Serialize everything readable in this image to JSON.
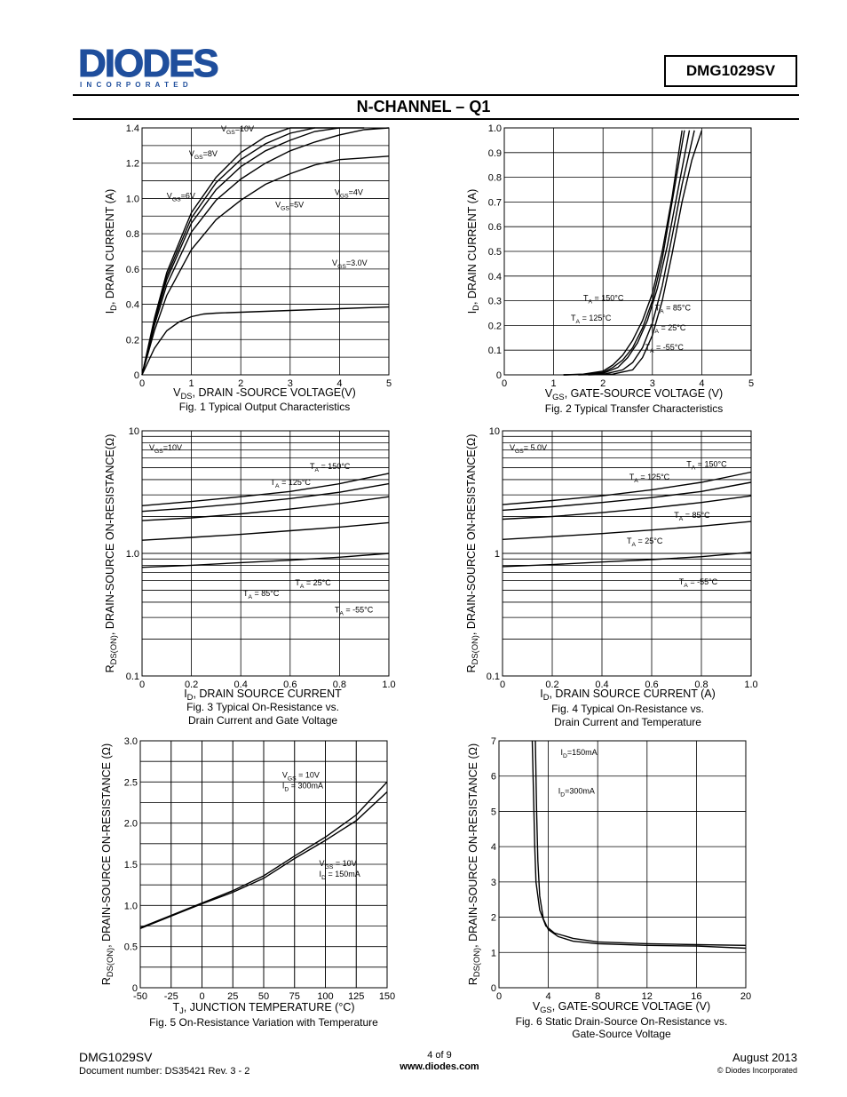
{
  "header": {
    "logo_text": "DIODES",
    "logo_sub": "I N C O R P O R A T E D",
    "part_number": "DMG1029SV",
    "section_title": "N-CHANNEL – Q1"
  },
  "footer": {
    "part": "DMG1029SV",
    "doc": "Document number: DS35421  Rev. 3 - 2",
    "page": "4 of 9",
    "url": "www.diodes.com",
    "date": "August 2013",
    "copyright": "© Diodes Incorporated"
  },
  "chart_data": [
    {
      "type": "line",
      "caption": "Fig. 1 Typical Output Characteristics",
      "xlabel": "V_DS, DRAIN -SOURCE VOLTAGE(V)",
      "ylabel": "I_D, DRAIN CURRENT (A)",
      "xlim": [
        0,
        5
      ],
      "ylim": [
        0,
        1.4
      ],
      "xticks": [
        "0",
        "1",
        "2",
        "3",
        "4",
        "5"
      ],
      "yticks": [
        "0",
        "0.2",
        "0.4",
        "0.6",
        "0.8",
        "1.0",
        "1.2",
        "1.4"
      ],
      "series": [
        {
          "name": "V_GS=10V",
          "x": [
            0,
            0.25,
            0.5,
            1,
            1.5,
            2,
            2.5,
            3,
            3.5
          ],
          "y": [
            0,
            0.32,
            0.58,
            0.92,
            1.12,
            1.26,
            1.35,
            1.41,
            1.44
          ]
        },
        {
          "name": "V_GS=8V",
          "x": [
            0,
            0.25,
            0.5,
            1,
            1.5,
            2,
            2.5,
            3,
            3.5,
            4
          ],
          "y": [
            0,
            0.31,
            0.56,
            0.89,
            1.09,
            1.22,
            1.31,
            1.37,
            1.41,
            1.43
          ]
        },
        {
          "name": "V_GS=6V",
          "x": [
            0,
            0.25,
            0.5,
            1,
            1.5,
            2,
            2.5,
            3,
            3.5,
            4,
            4.5
          ],
          "y": [
            0,
            0.3,
            0.54,
            0.86,
            1.05,
            1.18,
            1.27,
            1.33,
            1.38,
            1.41,
            1.43
          ]
        },
        {
          "name": "V_GS=5V",
          "x": [
            0,
            0.25,
            0.5,
            1,
            1.5,
            2,
            2.5,
            3,
            3.5,
            4,
            4.5,
            5
          ],
          "y": [
            0,
            0.28,
            0.51,
            0.81,
            0.99,
            1.11,
            1.2,
            1.27,
            1.32,
            1.36,
            1.39,
            1.41
          ]
        },
        {
          "name": "V_GS=4V",
          "x": [
            0,
            0.25,
            0.5,
            1,
            1.5,
            2,
            2.5,
            3,
            3.5,
            4,
            4.5,
            5
          ],
          "y": [
            0,
            0.25,
            0.45,
            0.71,
            0.88,
            0.99,
            1.08,
            1.14,
            1.19,
            1.22,
            1.23,
            1.24
          ]
        },
        {
          "name": "V_GS=3.0V",
          "x": [
            0,
            0.25,
            0.5,
            0.75,
            1,
            1.25,
            1.5,
            2,
            3,
            4,
            5
          ],
          "y": [
            0,
            0.15,
            0.25,
            0.3,
            0.33,
            0.345,
            0.35,
            0.355,
            0.365,
            0.375,
            0.385
          ]
        }
      ],
      "annotations": [
        {
          "text": "V_GS=10V",
          "x": 1.6,
          "y": 1.38
        },
        {
          "text": "V_GS=8V",
          "x": 0.95,
          "y": 1.24
        },
        {
          "text": "V_GS=6V",
          "x": 0.5,
          "y": 1.0
        },
        {
          "text": "V_GS=5V",
          "x": 2.7,
          "y": 0.95
        },
        {
          "text": "V_GS=4V",
          "x": 3.9,
          "y": 1.02
        },
        {
          "text": "V_GS=3.0V",
          "x": 3.85,
          "y": 0.62
        }
      ]
    },
    {
      "type": "line",
      "caption": "Fig. 2 Typical Transfer Characteristics",
      "xlabel": "V_GS, GATE-SOURCE VOLTAGE (V)",
      "ylabel": "I_D, DRAIN CURRENT (A)",
      "xlim": [
        0,
        5
      ],
      "ylim": [
        0,
        1.0
      ],
      "xticks": [
        "0",
        "1",
        "2",
        "3",
        "4",
        "5"
      ],
      "yticks": [
        "0",
        "0.1",
        "0.2",
        "0.3",
        "0.4",
        "0.5",
        "0.6",
        "0.7",
        "0.8",
        "0.9",
        "1.0"
      ],
      "series": [
        {
          "name": "T_A = 150°C",
          "x": [
            1.2,
            1.6,
            2.0,
            2.2,
            2.4,
            2.6,
            2.8,
            3.0,
            3.2,
            3.4,
            3.6
          ],
          "y": [
            0,
            0.003,
            0.015,
            0.04,
            0.08,
            0.14,
            0.22,
            0.33,
            0.5,
            0.72,
            0.99
          ]
        },
        {
          "name": "T_A = 125°C",
          "x": [
            1.2,
            1.6,
            2.0,
            2.2,
            2.4,
            2.6,
            2.8,
            3.0,
            3.2,
            3.4,
            3.65
          ],
          "y": [
            0,
            0.002,
            0.01,
            0.03,
            0.06,
            0.11,
            0.19,
            0.3,
            0.47,
            0.7,
            0.99
          ]
        },
        {
          "name": "T_A = 85°C",
          "x": [
            1.2,
            1.6,
            2.0,
            2.3,
            2.5,
            2.7,
            2.9,
            3.1,
            3.3,
            3.5,
            3.75
          ],
          "y": [
            0,
            0.001,
            0.006,
            0.03,
            0.07,
            0.13,
            0.22,
            0.35,
            0.52,
            0.73,
            0.99
          ]
        },
        {
          "name": "T_A = 25°C",
          "x": [
            1.5,
            2.0,
            2.4,
            2.6,
            2.8,
            3.0,
            3.2,
            3.4,
            3.6,
            3.85
          ],
          "y": [
            0,
            0.002,
            0.02,
            0.05,
            0.11,
            0.21,
            0.36,
            0.56,
            0.77,
            0.99
          ]
        },
        {
          "name": "T_A = -55°C",
          "x": [
            1.7,
            2.2,
            2.6,
            2.8,
            3.0,
            3.2,
            3.4,
            3.6,
            3.8,
            4.0
          ],
          "y": [
            0,
            0.003,
            0.02,
            0.07,
            0.16,
            0.3,
            0.49,
            0.7,
            0.87,
            0.99
          ]
        }
      ],
      "annotations": [
        {
          "text": "T_A = 150°C",
          "x": 1.6,
          "y": 0.3
        },
        {
          "text": "T_A = 125°C",
          "x": 1.35,
          "y": 0.22
        },
        {
          "text": "T_A = 85°C",
          "x": 3.05,
          "y": 0.26
        },
        {
          "text": "T_A = 25°C",
          "x": 2.95,
          "y": 0.18
        },
        {
          "text": "T_A = -55°C",
          "x": 2.85,
          "y": 0.1
        }
      ]
    },
    {
      "type": "line",
      "caption": "Fig. 3 Typical On-Resistance vs.",
      "caption2": "Drain Current and Gate Voltage",
      "xlabel": "I_D, DRAIN SOURCE CURRENT",
      "ylabel": "R_DS(ON), DRAIN-SOURCE ON-RESISTANCE(Ω)",
      "scale_y": "log",
      "xlim": [
        0,
        1.0
      ],
      "ylim": [
        0.1,
        10
      ],
      "xticks": [
        "0",
        "0.2",
        "0.4",
        "0.6",
        "0.8",
        "1.0"
      ],
      "yticks": [
        "0.1",
        "1.0",
        "10"
      ],
      "legend": "V_GS=10V",
      "series": [
        {
          "name": "T_A = 150°C",
          "x": [
            0,
            0.2,
            0.4,
            0.6,
            0.8,
            1.0
          ],
          "y": [
            2.45,
            2.65,
            2.9,
            3.2,
            3.7,
            4.5
          ]
        },
        {
          "name": "T_A = 125°C",
          "x": [
            0,
            0.2,
            0.4,
            0.6,
            0.8,
            1.0
          ],
          "y": [
            2.2,
            2.35,
            2.55,
            2.8,
            3.15,
            3.7
          ]
        },
        {
          "name": "T_A = 85°C",
          "x": [
            0,
            0.2,
            0.4,
            0.6,
            0.8,
            1.0
          ],
          "y": [
            1.85,
            1.95,
            2.1,
            2.3,
            2.55,
            2.9
          ]
        },
        {
          "name": "T_A = 25°C",
          "x": [
            0,
            0.2,
            0.4,
            0.6,
            0.8,
            1.0
          ],
          "y": [
            1.28,
            1.35,
            1.43,
            1.53,
            1.64,
            1.78
          ]
        },
        {
          "name": "T_A = -55°C",
          "x": [
            0,
            0.2,
            0.4,
            0.6,
            0.8,
            1.0
          ],
          "y": [
            0.77,
            0.8,
            0.84,
            0.88,
            0.93,
            1.0
          ]
        }
      ],
      "annotations": [
        {
          "text": "T_A = 150°C",
          "x": 0.68,
          "y": 4.9
        },
        {
          "text": "T_A = 125°C",
          "x": 0.52,
          "y": 3.6
        },
        {
          "text": "T_A = 85°C",
          "x": 0.41,
          "y": 0.45
        },
        {
          "text": "T_A = 25°C",
          "x": 0.62,
          "y": 0.55
        },
        {
          "text": "T_A = -55°C",
          "x": 0.78,
          "y": 0.33
        }
      ]
    },
    {
      "type": "line",
      "caption": "Fig. 4  Typical On-Resistance vs.",
      "caption2": "Drain Current and Temperature",
      "xlabel": "I_D, DRAIN SOURCE CURRENT (A)",
      "ylabel": "R_DS(ON), DRAIN-SOURCE ON-RESISTANCE(Ω)",
      "scale_y": "log",
      "xlim": [
        0,
        1.0
      ],
      "ylim": [
        0.1,
        10
      ],
      "xticks": [
        "0",
        "0.2",
        "0.4",
        "0.6",
        "0.8",
        "1.0"
      ],
      "yticks": [
        "0.1",
        "1",
        "10"
      ],
      "legend": "V_GS= 5.0V",
      "series": [
        {
          "name": "T_A = 150°C",
          "x": [
            0,
            0.2,
            0.4,
            0.6,
            0.8,
            1.0
          ],
          "y": [
            2.5,
            2.7,
            2.95,
            3.3,
            3.8,
            4.6
          ]
        },
        {
          "name": "T_A = 125°C",
          "x": [
            0,
            0.2,
            0.4,
            0.6,
            0.8,
            1.0
          ],
          "y": [
            2.25,
            2.4,
            2.6,
            2.85,
            3.2,
            3.8
          ]
        },
        {
          "name": "T_A = 85°C",
          "x": [
            0,
            0.2,
            0.4,
            0.6,
            0.8,
            1.0
          ],
          "y": [
            1.9,
            2.0,
            2.15,
            2.35,
            2.6,
            2.95
          ]
        },
        {
          "name": "T_A = 25°C",
          "x": [
            0,
            0.2,
            0.4,
            0.6,
            0.8,
            1.0
          ],
          "y": [
            1.3,
            1.37,
            1.45,
            1.55,
            1.67,
            1.82
          ]
        },
        {
          "name": "T_A = -55°C",
          "x": [
            0,
            0.2,
            0.4,
            0.6,
            0.8,
            1.0
          ],
          "y": [
            0.78,
            0.81,
            0.85,
            0.89,
            0.94,
            1.02
          ]
        }
      ],
      "annotations": [
        {
          "text": "T_A = 150°C",
          "x": 0.74,
          "y": 5.1
        },
        {
          "text": "T_A = 125°C",
          "x": 0.51,
          "y": 4.0
        },
        {
          "text": "T_A = 85°C",
          "x": 0.69,
          "y": 1.95
        },
        {
          "text": "T_A = 25°C",
          "x": 0.5,
          "y": 1.2
        },
        {
          "text": "T_A = -55°C",
          "x": 0.71,
          "y": 0.56
        }
      ]
    },
    {
      "type": "line",
      "caption": "Fig. 5 On-Resistance Variation with Temperature",
      "xlabel": "T_J, JUNCTION TEMPERATURE (°C)",
      "ylabel": "R_DS(ON), DRAIN-SOURCE ON-RESISTANCE (Ω)",
      "xlim": [
        -50,
        150
      ],
      "ylim": [
        0,
        3.0
      ],
      "xticks": [
        "-50",
        "-25",
        "0",
        "25",
        "50",
        "75",
        "100",
        "125",
        "150"
      ],
      "yticks": [
        "0",
        "0.5",
        "1.0",
        "1.5",
        "2.0",
        "2.5",
        "3.0"
      ],
      "series": [
        {
          "name": "V_GS = 10V I_D = 300mA",
          "x": [
            -50,
            -25,
            0,
            25,
            50,
            75,
            100,
            125,
            150
          ],
          "y": [
            0.73,
            0.88,
            1.03,
            1.18,
            1.36,
            1.6,
            1.83,
            2.1,
            2.5
          ]
        },
        {
          "name": "V_GS = 10V I_D = 150mA",
          "x": [
            -50,
            -25,
            0,
            25,
            50,
            75,
            100,
            125,
            150
          ],
          "y": [
            0.72,
            0.87,
            1.02,
            1.16,
            1.33,
            1.57,
            1.79,
            2.03,
            2.38
          ]
        }
      ],
      "annotations": [
        {
          "text": "V_GS = 10V",
          "x": 65,
          "y": 2.55
        },
        {
          "text": "I_D = 300mA",
          "x": 65,
          "y": 2.42
        },
        {
          "text": "V_GS = 10V",
          "x": 95,
          "y": 1.48
        },
        {
          "text": "I_D = 150mA",
          "x": 95,
          "y": 1.35
        }
      ]
    },
    {
      "type": "line",
      "caption": "Fig. 6 Static Drain-Source On-Resistance vs.",
      "caption2": "Gate-Source Voltage",
      "xlabel": "V_GS, GATE-SOURCE VOLTAGE (V)",
      "ylabel": "R_DS(ON), DRAIN-SOURCE ON-RESISTANCE  (Ω)",
      "xlim": [
        0,
        20
      ],
      "ylim": [
        0,
        7
      ],
      "xticks": [
        "0",
        "4",
        "8",
        "12",
        "16",
        "20"
      ],
      "yticks": [
        "0",
        "1",
        "2",
        "3",
        "4",
        "5",
        "6",
        "7"
      ],
      "series": [
        {
          "name": "I_D=150mA",
          "x": [
            2.7,
            2.8,
            2.9,
            3.0,
            3.3,
            3.8,
            4.5,
            6,
            8,
            12,
            16,
            20
          ],
          "y": [
            7,
            5.5,
            4.0,
            3.0,
            2.2,
            1.75,
            1.55,
            1.4,
            1.3,
            1.25,
            1.22,
            1.2
          ]
        },
        {
          "name": "I_D=300mA",
          "x": [
            2.95,
            3.05,
            3.15,
            3.3,
            3.6,
            4.0,
            4.8,
            6,
            8,
            12,
            16,
            20
          ],
          "y": [
            7,
            5.0,
            3.6,
            2.6,
            1.95,
            1.65,
            1.45,
            1.32,
            1.25,
            1.2,
            1.18,
            1.12
          ]
        }
      ],
      "annotations": [
        {
          "text": "I_D=150mA",
          "x": 5.0,
          "y": 6.6
        },
        {
          "text": "I_D=300mA",
          "x": 4.8,
          "y": 5.5
        }
      ]
    }
  ]
}
